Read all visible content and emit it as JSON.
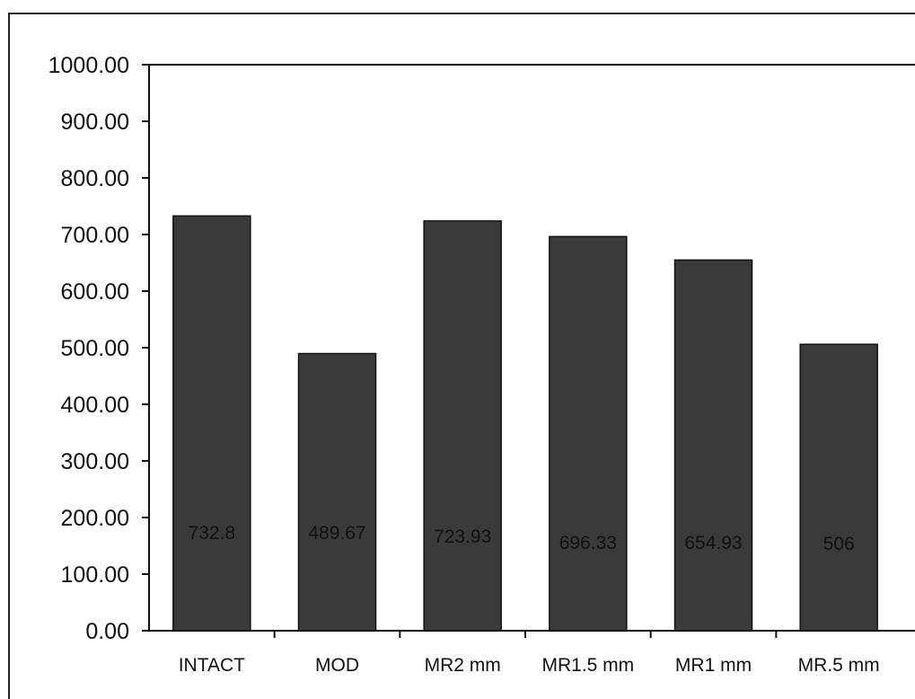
{
  "chart_data": {
    "type": "bar",
    "title": "",
    "xlabel": "",
    "ylabel": "",
    "categories": [
      "INTACT",
      "MOD",
      "MR2 mm",
      "MR1.5 mm",
      "MR1 mm",
      "MR.5 mm"
    ],
    "values": [
      732.8,
      489.67,
      723.93,
      696.33,
      654.93,
      506
    ],
    "data_labels": [
      "732.8",
      "489.67",
      "723.93",
      "696.33",
      "654.93",
      "506"
    ],
    "ylim": [
      0,
      1000
    ],
    "yticks": [
      "0.00",
      "100.00",
      "200.00",
      "300.00",
      "400.00",
      "500.00",
      "600.00",
      "700.00",
      "800.00",
      "900.00",
      "1000.00"
    ],
    "grid": false,
    "legend": "none",
    "bar_color": "#3a3a3a"
  }
}
